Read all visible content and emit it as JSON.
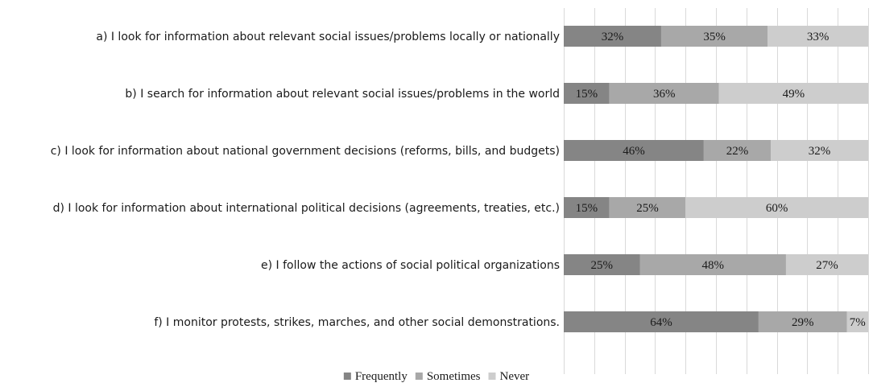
{
  "chart_data": {
    "type": "bar",
    "orientation": "horizontal",
    "stacked": true,
    "categories": [
      "a) I look for information about relevant social issues/problems locally or nationally",
      "b) I search for information about relevant social issues/problems in the world",
      "c) I look for information about national government decisions (reforms, bills, and budgets)",
      "d) I look for information about international political decisions (agreements, treaties, etc.)",
      "e) I follow the actions of social political organizations",
      "f) I monitor protests, strikes, marches, and other social demonstrations."
    ],
    "series": [
      {
        "name": "Frequently",
        "color": "#858585",
        "values": [
          32,
          15,
          46,
          15,
          25,
          64
        ]
      },
      {
        "name": "Sometimes",
        "color": "#a8a8a8",
        "values": [
          35,
          36,
          22,
          25,
          48,
          29
        ]
      },
      {
        "name": "Never",
        "color": "#cdcdcd",
        "values": [
          33,
          49,
          32,
          60,
          27,
          7
        ]
      }
    ],
    "value_suffix": "%",
    "xlim": [
      0,
      100
    ],
    "grid": true,
    "legend_position": "bottom"
  }
}
